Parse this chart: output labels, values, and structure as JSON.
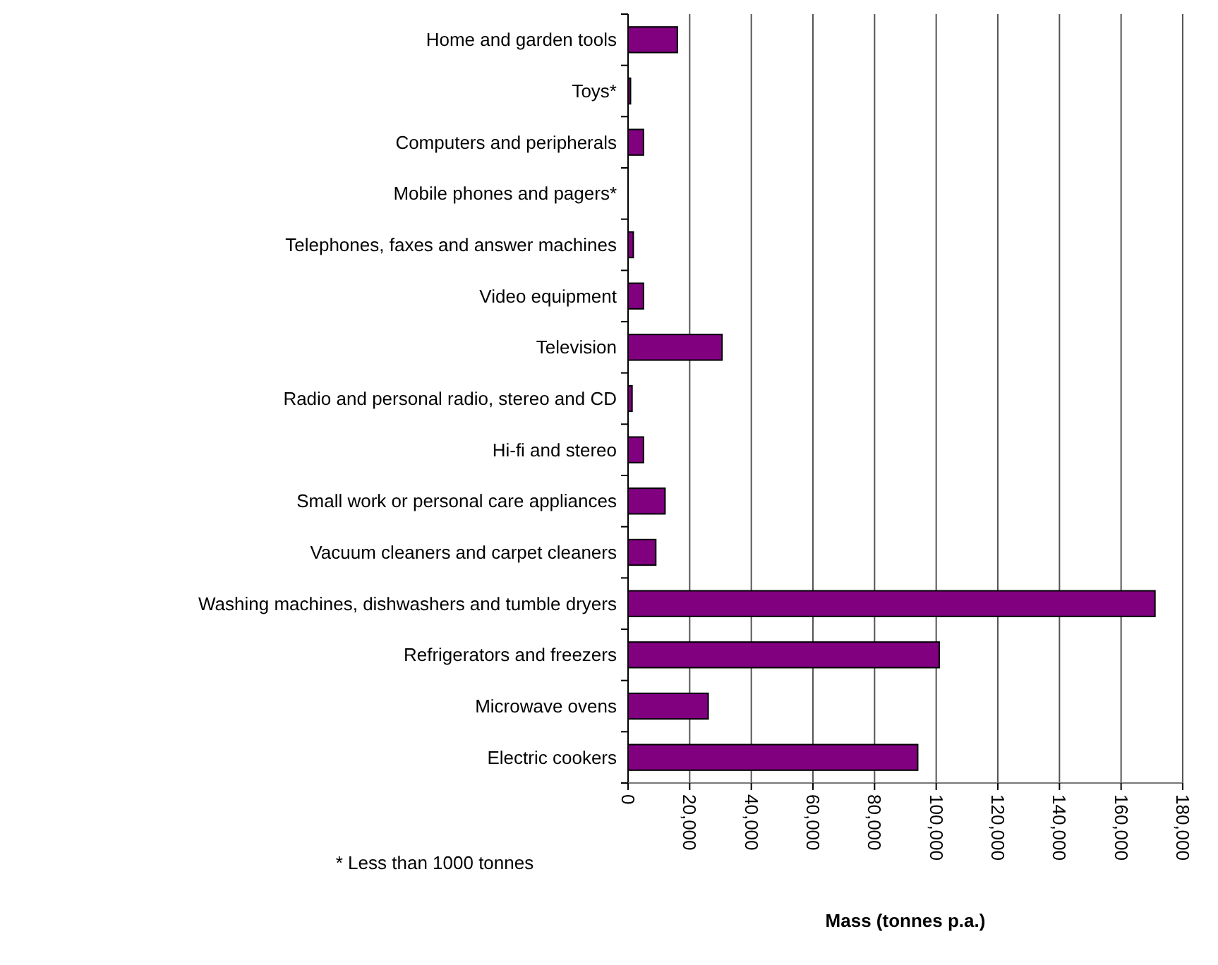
{
  "chart_data": {
    "type": "bar",
    "orientation": "horizontal",
    "xlabel": "Mass (tonnes p.a.)",
    "annotations": [
      "* Less than 1000 tonnes"
    ],
    "categories": [
      "Home and garden tools",
      "Toys*",
      "Computers and peripherals",
      "Mobile phones and pagers*",
      "Telephones, faxes and answer machines",
      "Video equipment",
      "Television",
      "Radio and personal radio, stereo and CD",
      "Hi-fi and stereo",
      "Small work or personal care appliances",
      "Vacuum cleaners and carpet cleaners",
      "Washing machines, dishwashers and tumble dryers",
      "Refrigerators and freezers",
      "Microwave ovens",
      "Electric cookers"
    ],
    "values": [
      16000,
      800,
      5000,
      0,
      1700,
      5000,
      30500,
      1300,
      5000,
      12000,
      9000,
      171000,
      101000,
      26000,
      94000
    ],
    "color": "#800080",
    "xlim": [
      0,
      180000
    ],
    "xticks": [
      0,
      {
        "value": 20000,
        "label": "20,000"
      },
      {
        "value": 40000,
        "label": "40,000"
      },
      {
        "value": 60000,
        "label": "60,000"
      },
      {
        "value": 80000,
        "label": "80,000"
      },
      {
        "value": 100000,
        "label": "100,000"
      },
      {
        "value": 120000,
        "label": "120,000"
      },
      {
        "value": 140000,
        "label": "140,000"
      },
      {
        "value": 160000,
        "label": "160,000"
      },
      {
        "value": 180000,
        "label": "180,000"
      }
    ],
    "grid": "x"
  }
}
